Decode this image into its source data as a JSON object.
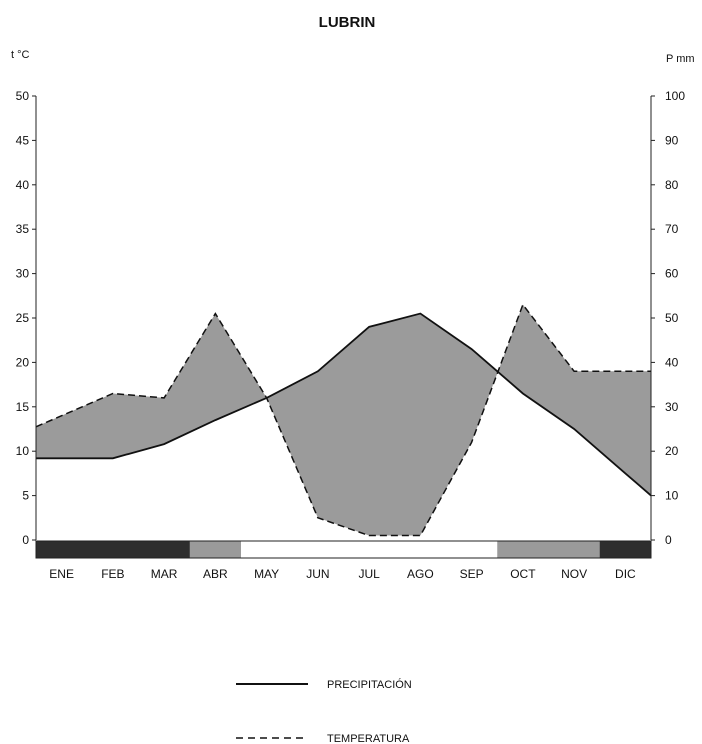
{
  "chart_data": {
    "type": "area",
    "title": "LUBRIN",
    "left_axis_label": "t °C",
    "right_axis_label": "P mm",
    "categories": [
      "ENE",
      "FEB",
      "MAR",
      "ABR",
      "MAY",
      "JUN",
      "JUL",
      "AGO",
      "SEP",
      "OCT",
      "NOV",
      "DIC"
    ],
    "left_ticks": [
      "0",
      "5",
      "10",
      "15",
      "20",
      "25",
      "30",
      "35",
      "40",
      "45",
      "50"
    ],
    "right_ticks": [
      "0",
      "10",
      "20",
      "30",
      "40",
      "50",
      "60",
      "70",
      "80",
      "90",
      "100"
    ],
    "left_ylim": [
      0,
      50
    ],
    "right_ylim": [
      0,
      100
    ],
    "series": [
      {
        "name": "PRECIPITACIÓN",
        "axis": "left",
        "style": "solid",
        "values": [
          9.2,
          9.2,
          10.8,
          13.5,
          16.0,
          19.0,
          24.0,
          25.5,
          21.5,
          16.5,
          12.5,
          7.5
        ]
      },
      {
        "name": "TEMPERATURA",
        "axis": "right",
        "style": "dashed",
        "values": [
          28,
          33,
          32,
          51,
          32,
          5,
          1,
          1,
          22,
          53,
          38,
          38
        ]
      }
    ],
    "month_bar": [
      {
        "month": "ENE",
        "color": "#2e2e2e"
      },
      {
        "month": "FEB",
        "color": "#2e2e2e"
      },
      {
        "month": "MAR",
        "color": "#2e2e2e"
      },
      {
        "month": "ABR",
        "color": "#9a9a9a"
      },
      {
        "month": "MAY",
        "color": "#ffffff"
      },
      {
        "month": "JUN",
        "color": "#ffffff"
      },
      {
        "month": "JUL",
        "color": "#ffffff"
      },
      {
        "month": "AGO",
        "color": "#ffffff"
      },
      {
        "month": "SEP",
        "color": "#ffffff"
      },
      {
        "month": "OCT",
        "color": "#9a9a9a"
      },
      {
        "month": "NOV",
        "color": "#9a9a9a"
      },
      {
        "month": "DIC",
        "color": "#2e2e2e"
      }
    ],
    "colors": {
      "humid_fill": "#9b9b9b",
      "arid_fill": "#404040",
      "line": "#111111"
    },
    "grid": false,
    "legend_placement": "bottom-center"
  }
}
